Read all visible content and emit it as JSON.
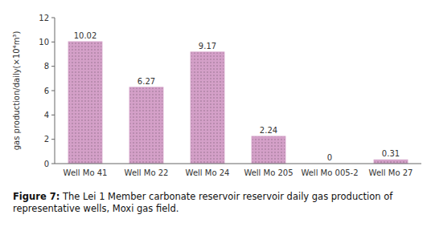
{
  "chart_data": {
    "type": "bar",
    "categories": [
      "Well Mo 41",
      "Well Mo 22",
      "Well Mo 24",
      "Well Mo 205",
      "Well Mo 005-2",
      "Well Mo 27"
    ],
    "values": [
      10.02,
      6.27,
      9.17,
      2.24,
      0,
      0.31
    ],
    "color": "#d4a0c8",
    "ylabel": "gas production/daily(×10⁴m³)",
    "ylim": [
      0,
      12
    ],
    "yticks": [
      0,
      2,
      4,
      6,
      8,
      10,
      12
    ],
    "data_labels": true,
    "grid": false,
    "caption_label": "Figure 7:",
    "caption": "The Lei 1 Member carbonate reservoir reservoir daily gas production of representative wells, Moxi gas field."
  }
}
